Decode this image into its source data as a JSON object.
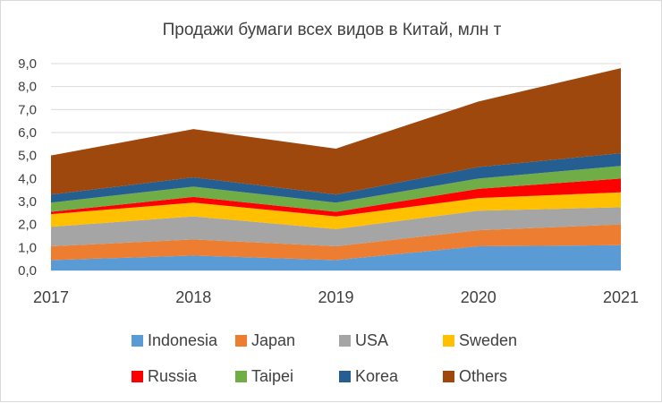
{
  "chart_data": {
    "type": "area",
    "stacked": true,
    "title": "Продажи бумаги всех видов в Китай, млн т",
    "xlabel": "",
    "ylabel": "",
    "x": [
      "2017",
      "2018",
      "2019",
      "2020",
      "2021"
    ],
    "ylim": [
      0,
      9
    ],
    "yticks": [
      "0,0",
      "1,0",
      "2,0",
      "3,0",
      "4,0",
      "5,0",
      "6,0",
      "7,0",
      "8,0",
      "9,0"
    ],
    "grid": true,
    "legend_position": "bottom",
    "series": [
      {
        "name": "Indonesia",
        "color": "#5b9bd5",
        "values": [
          0.45,
          0.65,
          0.45,
          1.05,
          1.1
        ]
      },
      {
        "name": "Japan",
        "color": "#ed7d31",
        "values": [
          0.6,
          0.7,
          0.6,
          0.7,
          0.9
        ]
      },
      {
        "name": "USA",
        "color": "#a5a5a5",
        "values": [
          0.85,
          1.0,
          0.75,
          0.85,
          0.75
        ]
      },
      {
        "name": "Sweden",
        "color": "#ffc000",
        "values": [
          0.55,
          0.6,
          0.55,
          0.55,
          0.65
        ]
      },
      {
        "name": "Russia",
        "color": "#ff0000",
        "values": [
          0.1,
          0.25,
          0.2,
          0.4,
          0.6
        ]
      },
      {
        "name": "Taipei",
        "color": "#70ad47",
        "values": [
          0.4,
          0.45,
          0.4,
          0.45,
          0.55
        ]
      },
      {
        "name": "Korea",
        "color": "#255e91",
        "values": [
          0.35,
          0.4,
          0.35,
          0.5,
          0.55
        ]
      },
      {
        "name": "Others",
        "color": "#9e480e",
        "values": [
          1.7,
          2.1,
          2.0,
          2.85,
          3.7
        ]
      }
    ]
  }
}
